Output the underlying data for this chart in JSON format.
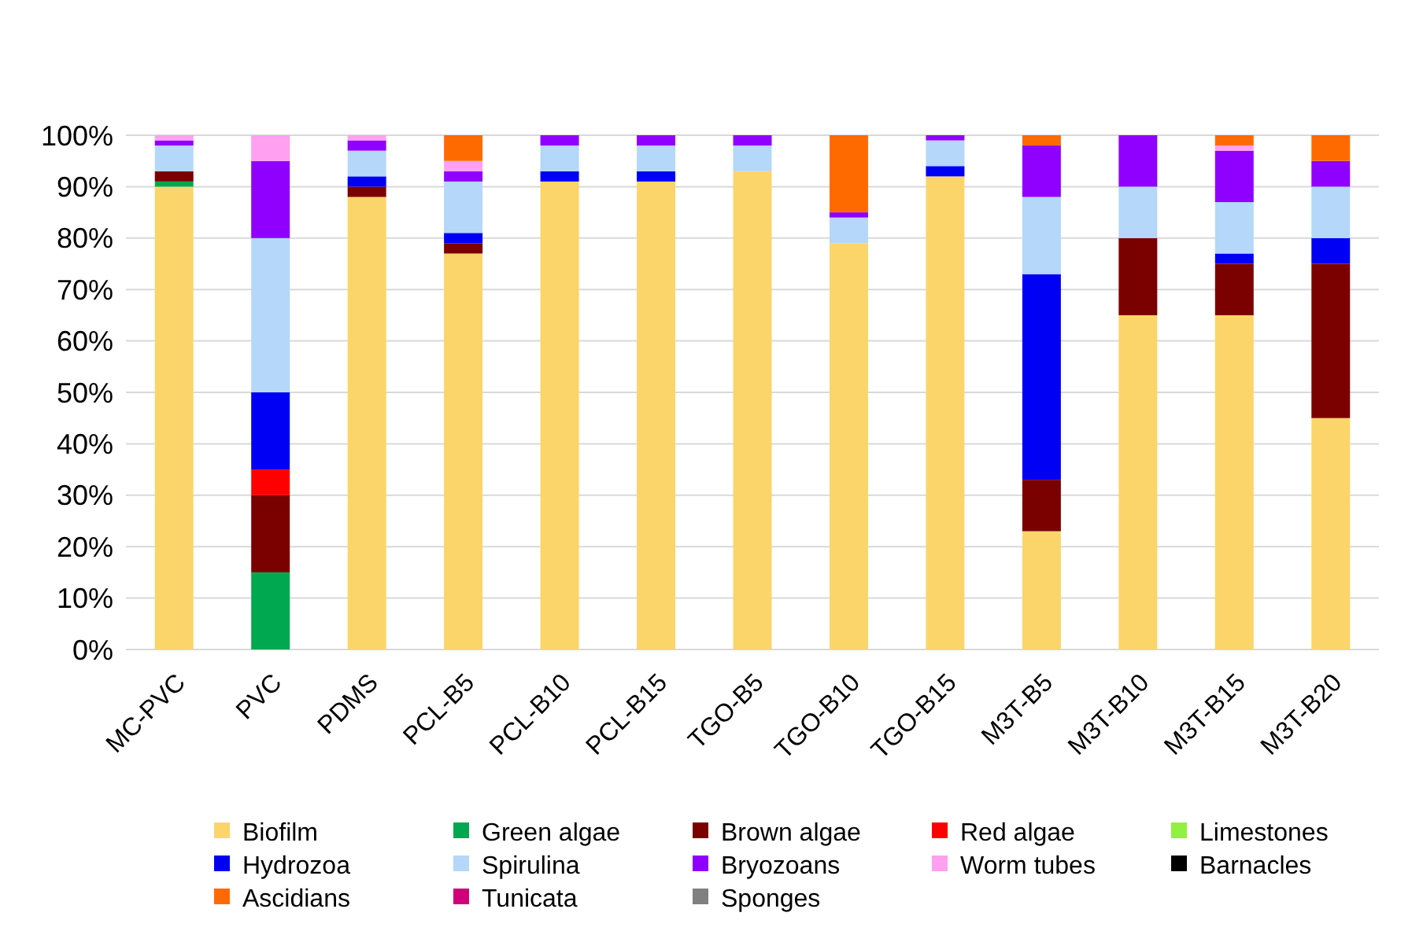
{
  "chart_data": {
    "type": "bar",
    "stacked": true,
    "categories": [
      "MC-PVC",
      "PVC",
      "PDMS",
      "PCL-B5",
      "PCL-B10",
      "PCL-B15",
      "TGO-B5",
      "TGO-B10",
      "TGO-B15",
      "M3T-B5",
      "M3T-B10",
      "M3T-B15",
      "M3T-B20"
    ],
    "series": [
      {
        "name": "Biofilm",
        "color": "#fcd56a",
        "values": [
          90,
          0,
          88,
          77,
          91,
          91,
          93,
          79,
          92,
          23,
          65,
          65,
          45
        ]
      },
      {
        "name": "Green algae",
        "color": "#00a84f",
        "values": [
          1,
          15,
          0,
          0,
          0,
          0,
          0,
          0,
          0,
          0,
          0,
          0,
          0
        ]
      },
      {
        "name": "Brown algae",
        "color": "#7b0000",
        "values": [
          2,
          15,
          2,
          2,
          0,
          0,
          0,
          0,
          0,
          10,
          15,
          10,
          30
        ]
      },
      {
        "name": "Red algae",
        "color": "#ff0000",
        "values": [
          0,
          5,
          0,
          0,
          0,
          0,
          0,
          0,
          0,
          0,
          0,
          0,
          0
        ]
      },
      {
        "name": "Limestones",
        "color": "#92f040",
        "values": [
          0,
          0,
          0,
          0,
          0,
          0,
          0,
          0,
          0,
          0,
          0,
          0,
          0
        ]
      },
      {
        "name": "Hydrozoa",
        "color": "#0000f5",
        "values": [
          0,
          15,
          2,
          2,
          2,
          2,
          0,
          0,
          2,
          40,
          0,
          2,
          5
        ]
      },
      {
        "name": "Spirulina",
        "color": "#b4d7fa",
        "values": [
          5,
          30,
          5,
          10,
          5,
          5,
          5,
          5,
          5,
          15,
          10,
          10,
          10
        ]
      },
      {
        "name": "Bryozoans",
        "color": "#9000ff",
        "values": [
          1,
          15,
          2,
          2,
          2,
          2,
          2,
          1,
          1,
          10,
          10,
          10,
          5
        ]
      },
      {
        "name": "Worm tubes",
        "color": "#ffa0f0",
        "values": [
          1,
          5,
          1,
          2,
          0,
          0,
          0,
          0,
          0,
          0,
          0,
          1,
          0
        ]
      },
      {
        "name": "Barnacles",
        "color": "#000000",
        "values": [
          0,
          0,
          0,
          0,
          0,
          0,
          0,
          0,
          0,
          0,
          0,
          0,
          0
        ]
      },
      {
        "name": "Ascidians",
        "color": "#ff6a00",
        "values": [
          0,
          0,
          0,
          5,
          0,
          0,
          0,
          15,
          0,
          2,
          0,
          2,
          5
        ]
      },
      {
        "name": "Tunicata",
        "color": "#d0007a",
        "values": [
          0,
          0,
          0,
          0,
          0,
          0,
          0,
          0,
          0,
          0,
          0,
          0,
          0
        ]
      },
      {
        "name": "Sponges",
        "color": "#808080",
        "values": [
          0,
          0,
          0,
          0,
          0,
          0,
          0,
          0,
          0,
          0,
          0,
          0,
          0
        ]
      }
    ],
    "ylim": [
      0,
      100
    ],
    "yticks": [
      {
        "value": 0,
        "label": "0%"
      },
      {
        "value": 10,
        "label": "10%"
      },
      {
        "value": 20,
        "label": "20%"
      },
      {
        "value": 30,
        "label": "30%"
      },
      {
        "value": 40,
        "label": "40%"
      },
      {
        "value": 50,
        "label": "50%"
      },
      {
        "value": 60,
        "label": "60%"
      },
      {
        "value": 70,
        "label": "70%"
      },
      {
        "value": 80,
        "label": "80%"
      },
      {
        "value": 90,
        "label": "90%"
      },
      {
        "value": 100,
        "label": "100%"
      }
    ],
    "grid": "y",
    "legend": "bottom"
  }
}
